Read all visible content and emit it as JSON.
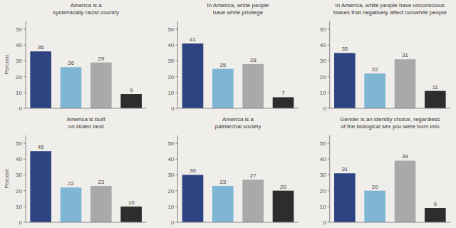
{
  "chart_data": [
    {
      "type": "bar",
      "title": "America is a\nsystemically racist country",
      "categories": [
        null,
        null,
        null,
        null
      ],
      "values": [
        36,
        26,
        29,
        9
      ],
      "colors": [
        "#2e4482",
        "#7eb6d4",
        "#a9a9a9",
        "#2d2d2d"
      ],
      "ylim": [
        0,
        55
      ],
      "yticks": [
        0,
        10,
        20,
        30,
        40,
        50
      ],
      "ylabel": "Percent",
      "data_labels": true,
      "tick_labels": "y",
      "grid": false
    },
    {
      "type": "bar",
      "title": "In America, white people\nhave white privilege",
      "categories": [
        null,
        null,
        null,
        null
      ],
      "values": [
        41,
        25,
        28,
        7
      ],
      "colors": [
        "#2e4482",
        "#7eb6d4",
        "#a9a9a9",
        "#2d2d2d"
      ],
      "ylim": [
        0,
        55
      ],
      "yticks": [
        0,
        10,
        20,
        30,
        40,
        50
      ],
      "data_labels": true,
      "tick_labels": "y",
      "grid": false
    },
    {
      "type": "bar",
      "title": "In America, white people have unconscious\nbiases that negatively affect nonwhite people",
      "categories": [
        null,
        null,
        null,
        null
      ],
      "values": [
        35,
        22,
        31,
        11
      ],
      "colors": [
        "#2e4482",
        "#7eb6d4",
        "#a9a9a9",
        "#2d2d2d"
      ],
      "ylim": [
        0,
        55
      ],
      "yticks": [
        0,
        10,
        20,
        30,
        40,
        50
      ],
      "data_labels": true,
      "tick_labels": "y",
      "grid": false
    },
    {
      "type": "bar",
      "title": "America is built\non stolen land",
      "categories": [
        null,
        null,
        null,
        null
      ],
      "values": [
        45,
        22,
        23,
        10
      ],
      "colors": [
        "#2e4482",
        "#7eb6d4",
        "#a9a9a9",
        "#2d2d2d"
      ],
      "ylim": [
        0,
        55
      ],
      "yticks": [
        0,
        10,
        20,
        30,
        40,
        50
      ],
      "ylabel": "Percent",
      "data_labels": true,
      "tick_labels": "y",
      "grid": false
    },
    {
      "type": "bar",
      "title": "America is a\npatriarchal society",
      "categories": [
        null,
        null,
        null,
        null
      ],
      "values": [
        30,
        23,
        27,
        20
      ],
      "colors": [
        "#2e4482",
        "#7eb6d4",
        "#a9a9a9",
        "#2d2d2d"
      ],
      "ylim": [
        0,
        55
      ],
      "yticks": [
        0,
        10,
        20,
        30,
        40,
        50
      ],
      "data_labels": true,
      "tick_labels": "y",
      "grid": false
    },
    {
      "type": "bar",
      "title": "Gender is an identity choice, regardless\nof the biological sex you were born into",
      "categories": [
        null,
        null,
        null,
        null
      ],
      "values": [
        31,
        20,
        39,
        9
      ],
      "colors": [
        "#2e4482",
        "#7eb6d4",
        "#a9a9a9",
        "#2d2d2d"
      ],
      "ylim": [
        0,
        55
      ],
      "yticks": [
        0,
        10,
        20,
        30,
        40,
        50
      ],
      "data_labels": true,
      "tick_labels": "y",
      "grid": false
    }
  ]
}
